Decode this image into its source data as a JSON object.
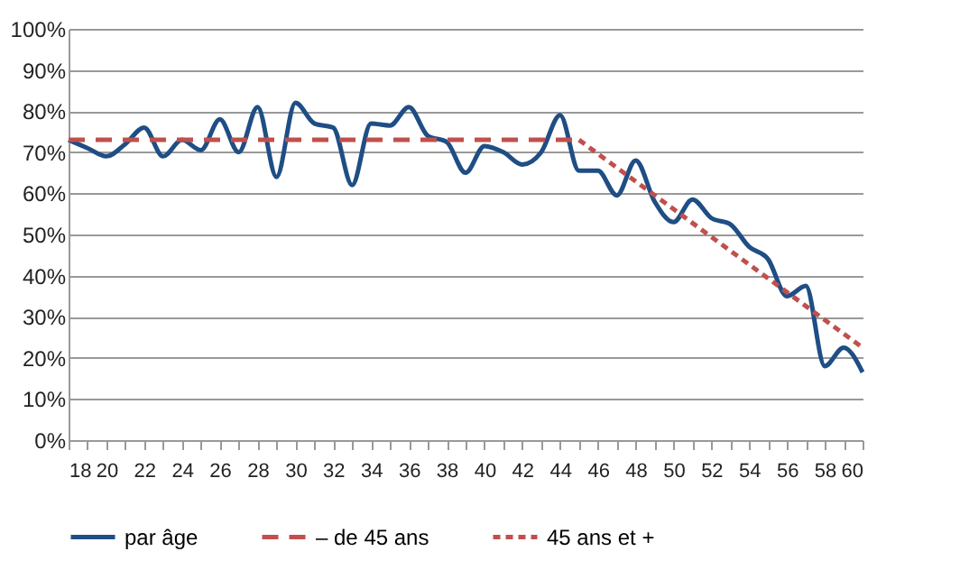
{
  "chart_data": {
    "type": "line",
    "x": [
      18,
      19,
      20,
      21,
      22,
      23,
      24,
      25,
      26,
      27,
      28,
      29,
      30,
      31,
      32,
      33,
      34,
      35,
      36,
      37,
      38,
      39,
      40,
      41,
      42,
      43,
      44,
      45,
      46,
      47,
      48,
      49,
      50,
      51,
      52,
      53,
      54,
      55,
      56,
      57,
      58,
      59,
      60
    ],
    "series": [
      {
        "name": "par âge",
        "color": "#1f4e85",
        "line_style": "solid",
        "values": [
          73,
          71,
          69,
          72,
          76,
          69,
          73,
          70.5,
          78,
          70,
          81,
          64,
          82,
          77,
          76,
          62,
          77,
          76.5,
          81,
          74,
          72.5,
          65,
          71.5,
          70,
          67,
          70,
          79,
          65.5,
          65.5,
          59.5,
          68,
          58,
          53,
          58.5,
          54,
          52.5,
          47,
          44,
          35,
          37.5,
          18,
          22.5,
          16.5
        ]
      },
      {
        "name": "– de 45 ans",
        "color": "#c0504d",
        "line_style": "dashed",
        "x": [
          18,
          45
        ],
        "values": [
          73,
          73
        ]
      },
      {
        "name": "45 ans et +",
        "color": "#c0504d",
        "line_style": "dotted",
        "x": [
          45,
          60
        ],
        "values": [
          73,
          22.5
        ]
      }
    ],
    "xlim": [
      18,
      60
    ],
    "xticks": [
      18,
      {
        "value": 19,
        "label": null
      },
      20,
      {
        "value": 21,
        "label": null
      },
      22,
      {
        "value": 23,
        "label": null
      },
      24,
      {
        "value": 25,
        "label": null
      },
      26,
      {
        "value": 27,
        "label": null
      },
      28,
      {
        "value": 29,
        "label": null
      },
      30,
      {
        "value": 31,
        "label": null
      },
      32,
      {
        "value": 33,
        "label": null
      },
      34,
      {
        "value": 35,
        "label": null
      },
      36,
      {
        "value": 37,
        "label": null
      },
      38,
      {
        "value": 39,
        "label": null
      },
      40,
      {
        "value": 41,
        "label": null
      },
      42,
      {
        "value": 43,
        "label": null
      },
      44,
      {
        "value": 45,
        "label": null
      },
      46,
      {
        "value": 47,
        "label": null
      },
      48,
      {
        "value": 49,
        "label": null
      },
      50,
      {
        "value": 51,
        "label": null
      },
      52,
      {
        "value": 53,
        "label": null
      },
      54,
      {
        "value": 55,
        "label": null
      },
      56,
      {
        "value": 57,
        "label": null
      },
      58,
      {
        "value": 59,
        "label": null
      },
      60
    ],
    "ylim": [
      0,
      100
    ],
    "yticks": [
      {
        "value": 0,
        "label": "0%"
      },
      {
        "value": 10,
        "label": "10%"
      },
      {
        "value": 20,
        "label": "20%"
      },
      {
        "value": 30,
        "label": "30%"
      },
      {
        "value": 40,
        "label": "40%"
      },
      {
        "value": 50,
        "label": "50%"
      },
      {
        "value": 60,
        "label": "60%"
      },
      {
        "value": 70,
        "label": "70%"
      },
      {
        "value": 80,
        "label": "80%"
      },
      {
        "value": 90,
        "label": "90%"
      },
      {
        "value": 100,
        "label": "100%"
      }
    ],
    "grid": "y",
    "legend": "bottom",
    "marker": "none"
  }
}
